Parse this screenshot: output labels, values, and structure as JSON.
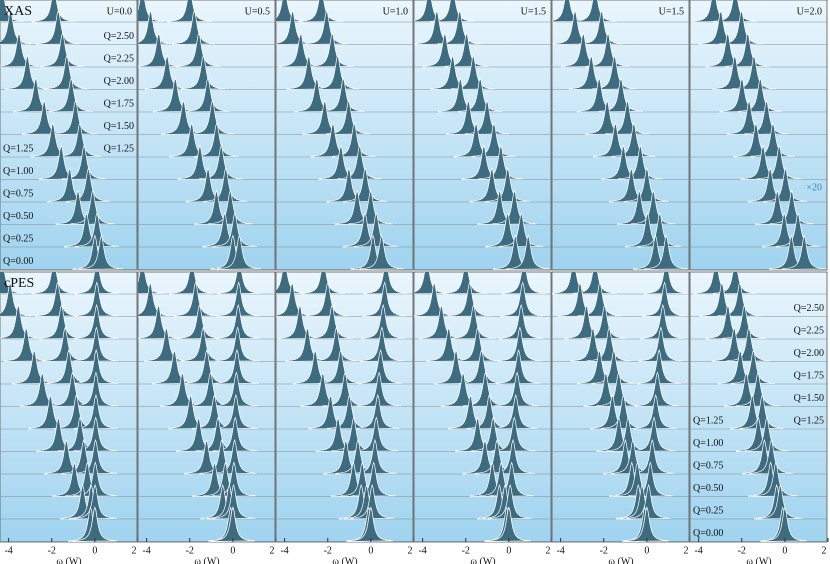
{
  "chart_data": [
    {
      "type": "waterfall",
      "spectrum": "XAS",
      "panel_label": "U=0.0",
      "xlim": [
        -4.4,
        2
      ],
      "q_labels_right": [
        "Q=2.50",
        "Q=2.25",
        "Q=2.00",
        "Q=1.75",
        "Q=1.50",
        "Q=1.25"
      ],
      "q_labels_left": [
        "Q=1.25",
        "Q=1.00",
        "Q=0.75",
        "Q=0.50",
        "Q=0.25",
        "Q=0.00"
      ],
      "peaks": [
        [
          -4.3,
          -3.91,
          -3.52,
          -3.13,
          -2.74,
          -2.35,
          -1.95,
          -1.56,
          -1.17,
          -0.78,
          -0.39,
          0.0
        ],
        [
          -1.9,
          -1.7,
          -1.5,
          -1.3,
          -1.1,
          -0.9,
          -0.7,
          -0.5,
          -0.3,
          -0.1,
          0.1,
          0.3
        ]
      ]
    },
    {
      "type": "waterfall",
      "panel_label": "U=0.5",
      "xlim": [
        -4.4,
        2
      ],
      "peaks": [
        [
          -4.2,
          -3.82,
          -3.44,
          -3.05,
          -2.67,
          -2.29,
          -1.91,
          -1.53,
          -1.15,
          -0.76,
          -0.38,
          0.0
        ],
        [
          -2.0,
          -1.79,
          -1.58,
          -1.37,
          -1.16,
          -0.95,
          -0.75,
          -0.54,
          -0.33,
          -0.12,
          0.09,
          0.3
        ]
      ]
    },
    {
      "type": "waterfall",
      "panel_label": "U=1.0",
      "xlim": [
        -4.4,
        2
      ],
      "peaks": [
        [
          -4.0,
          -3.63,
          -3.25,
          -2.88,
          -2.51,
          -2.14,
          -1.76,
          -1.39,
          -1.02,
          -0.64,
          -0.27,
          0.1
        ],
        [
          -2.3,
          -2.05,
          -1.79,
          -1.54,
          -1.28,
          -1.03,
          -0.77,
          -0.52,
          -0.26,
          -0.01,
          0.25,
          0.5
        ]
      ]
    },
    {
      "type": "waterfall",
      "panel_label": "U=1.5",
      "xlim": [
        -4.4,
        2
      ],
      "peaks": [
        [
          -3.7,
          -3.34,
          -2.97,
          -2.61,
          -2.25,
          -1.88,
          -1.52,
          -1.16,
          -0.79,
          -0.43,
          -0.06,
          0.3
        ],
        [
          -2.6,
          -2.28,
          -1.96,
          -1.65,
          -1.33,
          -1.01,
          -0.69,
          -0.37,
          -0.05,
          0.26,
          0.58,
          0.9
        ]
      ]
    },
    {
      "type": "waterfall",
      "panel_label": "U=1.5",
      "xlim": [
        -4.4,
        2
      ],
      "peaks": [
        [
          -3.7,
          -3.33,
          -2.95,
          -2.58,
          -2.21,
          -1.84,
          -1.46,
          -1.09,
          -0.72,
          -0.35,
          0.03,
          0.4
        ],
        [
          -2.4,
          -2.1,
          -1.8,
          -1.5,
          -1.2,
          -0.9,
          -0.6,
          -0.3,
          0.0,
          0.3,
          0.6,
          0.9
        ]
      ]
    },
    {
      "type": "waterfall",
      "panel_label": "U=2.0",
      "annotation": "×20",
      "xlim": [
        -4.4,
        2
      ],
      "peaks": [
        [
          -3.3,
          -2.97,
          -2.65,
          -2.32,
          -1.99,
          -1.66,
          -1.34,
          -1.01,
          -0.68,
          -0.35,
          -0.03,
          0.3
        ],
        [
          -2.3,
          -2.01,
          -1.72,
          -1.43,
          -1.14,
          -0.85,
          -0.55,
          -0.26,
          0.03,
          0.32,
          0.61,
          0.9
        ]
      ]
    },
    {
      "type": "waterfall",
      "spectrum": "cPES",
      "xlim": [
        -4.4,
        2
      ],
      "xticks": [
        -4,
        -2,
        0,
        2
      ],
      "xlabel": "ω (W)",
      "peaks": [
        [
          -4.3,
          -3.93,
          -3.55,
          -3.18,
          -2.81,
          -2.44,
          -2.06,
          -1.69,
          -1.32,
          -0.95,
          -0.57,
          -0.2
        ],
        [
          -1.9,
          -1.73,
          -1.55,
          -1.38,
          -1.21,
          -1.04,
          -0.86,
          -0.69,
          -0.52,
          -0.35,
          -0.17,
          0.0
        ],
        [
          0.1,
          0.09,
          0.08,
          0.07,
          0.06,
          0.05,
          0.05,
          0.04,
          0.03,
          0.02,
          0.01,
          0.0
        ]
      ]
    },
    {
      "type": "waterfall",
      "xlim": [
        -4.4,
        2
      ],
      "xticks": [
        -4,
        -2,
        0,
        2
      ],
      "xlabel": "ω (W)",
      "peaks": [
        [
          -4.2,
          -3.83,
          -3.45,
          -3.08,
          -2.71,
          -2.34,
          -1.96,
          -1.59,
          -1.22,
          -0.85,
          -0.47,
          -0.1
        ],
        [
          -1.9,
          -1.73,
          -1.55,
          -1.38,
          -1.21,
          -1.04,
          -0.86,
          -0.69,
          -0.52,
          -0.35,
          -0.17,
          0.0
        ],
        [
          0.3,
          0.27,
          0.25,
          0.22,
          0.19,
          0.16,
          0.14,
          0.11,
          0.08,
          0.05,
          0.03,
          0.0
        ]
      ]
    },
    {
      "type": "waterfall",
      "xlim": [
        -4.4,
        2
      ],
      "xticks": [
        -4,
        -2,
        0,
        2
      ],
      "xlabel": "ω (W)",
      "peaks": [
        [
          -4.0,
          -3.65,
          -3.29,
          -2.94,
          -2.58,
          -2.23,
          -1.87,
          -1.52,
          -1.16,
          -0.81,
          -0.45,
          -0.1
        ],
        [
          -2.2,
          -2.0,
          -1.8,
          -1.6,
          -1.4,
          -1.2,
          -1.0,
          -0.8,
          -0.6,
          -0.4,
          -0.2,
          0.0
        ],
        [
          0.7,
          0.64,
          0.57,
          0.51,
          0.45,
          0.38,
          0.32,
          0.25,
          0.19,
          0.13,
          0.06,
          0.0
        ]
      ]
    },
    {
      "type": "waterfall",
      "xlim": [
        -4.4,
        2
      ],
      "xticks": [
        -4,
        -2,
        0,
        2
      ],
      "xlabel": "ω (W)",
      "peaks": [
        [
          -3.8,
          -3.46,
          -3.13,
          -2.79,
          -2.45,
          -2.12,
          -1.78,
          -1.45,
          -1.11,
          -0.77,
          -0.44,
          -0.1
        ],
        [
          -2.0,
          -1.82,
          -1.64,
          -1.45,
          -1.27,
          -1.09,
          -0.91,
          -0.73,
          -0.55,
          -0.36,
          -0.18,
          0.0
        ],
        [
          0.7,
          0.64,
          0.57,
          0.51,
          0.45,
          0.38,
          0.32,
          0.25,
          0.19,
          0.13,
          0.06,
          0.0
        ]
      ]
    },
    {
      "type": "waterfall",
      "xlim": [
        -4.4,
        2
      ],
      "xticks": [
        -4,
        -2,
        0,
        2
      ],
      "xlabel": "ω (W)",
      "peaks": [
        [
          -3.4,
          -3.1,
          -2.8,
          -2.5,
          -2.2,
          -1.9,
          -1.6,
          -1.3,
          -1.0,
          -0.7,
          -0.4,
          -0.1
        ],
        [
          -2.4,
          -2.18,
          -1.96,
          -1.75,
          -1.53,
          -1.31,
          -1.09,
          -0.87,
          -0.65,
          -0.44,
          -0.22,
          0.0
        ],
        [
          0.9,
          0.82,
          0.74,
          0.65,
          0.57,
          0.49,
          0.41,
          0.33,
          0.25,
          0.16,
          0.08,
          0.0
        ]
      ]
    },
    {
      "type": "waterfall",
      "xlim": [
        -4.4,
        2
      ],
      "xticks": [
        -4,
        -2,
        0,
        2
      ],
      "xlabel": "ω (W)",
      "q_labels_right": [
        "Q=2.50",
        "Q=2.25",
        "Q=2.00",
        "Q=1.75",
        "Q=1.50",
        "Q=1.25"
      ],
      "q_labels_left": [
        "Q=1.25",
        "Q=1.00",
        "Q=0.75",
        "Q=0.50",
        "Q=0.25",
        "Q=0.00"
      ],
      "peaks": [
        [
          -3.2,
          -2.92,
          -2.64,
          -2.35,
          -2.07,
          -1.79,
          -1.51,
          -1.23,
          -0.95,
          -0.66,
          -0.38,
          -0.1
        ],
        [
          -2.3,
          -2.09,
          -1.88,
          -1.67,
          -1.46,
          -1.25,
          -1.05,
          -0.84,
          -0.63,
          -0.42,
          -0.21,
          0.0
        ]
      ]
    }
  ]
}
